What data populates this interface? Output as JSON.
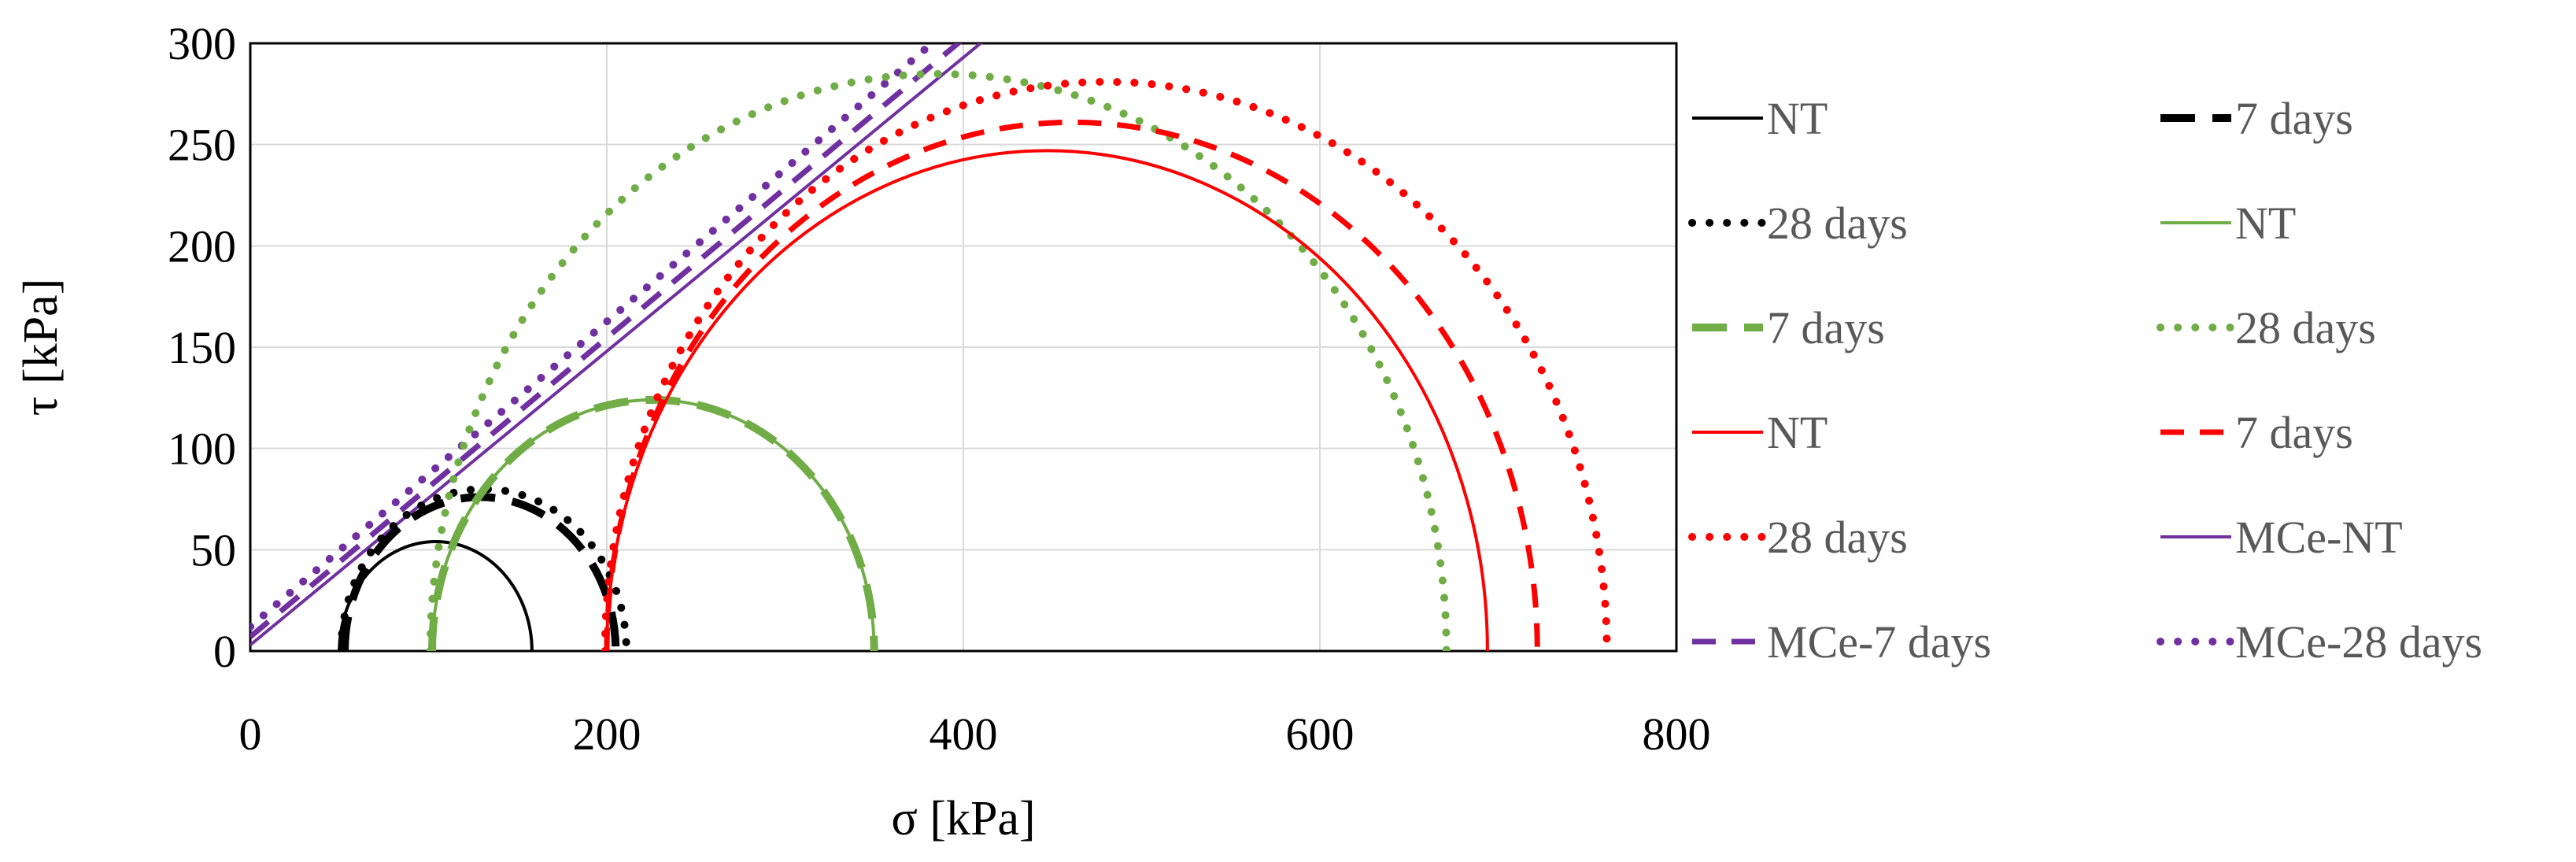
{
  "chart_data": {
    "type": "line",
    "title": "",
    "xlabel": "σ [kPa]",
    "ylabel": "τ [kPa]",
    "xlim": [
      0,
      800
    ],
    "ylim": [
      0,
      300
    ],
    "xticks": [
      "0",
      "200",
      "400",
      "600",
      "800"
    ],
    "yticks": [
      "0",
      "50",
      "100",
      "150",
      "200",
      "250",
      "300"
    ],
    "grid": true,
    "legend_position": "right, two columns",
    "circles": [
      {
        "name": "NT",
        "color": "#000000",
        "dash": "solid",
        "center": 104,
        "radius": 54
      },
      {
        "name": "7 days",
        "color": "#000000",
        "dash": "longdash",
        "center": 129,
        "radius": 76
      },
      {
        "name": "28 days",
        "color": "#000000",
        "dash": "dotted",
        "center": 131,
        "radius": 80
      },
      {
        "name": "NT",
        "color": "#70ad47",
        "dash": "solid",
        "center": 226,
        "radius": 124
      },
      {
        "name": "7 days",
        "color": "#70ad47",
        "dash": "longdash",
        "center": 226,
        "radius": 124
      },
      {
        "name": "28 days",
        "color": "#70ad47",
        "dash": "dotted",
        "center": 386,
        "radius": 285
      },
      {
        "name": "NT",
        "color": "#ff0000",
        "dash": "solid",
        "center": 447,
        "radius": 247
      },
      {
        "name": "7 days",
        "color": "#ff0000",
        "dash": "dash",
        "center": 461,
        "radius": 261
      },
      {
        "name": "28 days",
        "color": "#ff0000",
        "dash": "dotted",
        "center": 480,
        "radius": 281
      }
    ],
    "envelopes": [
      {
        "name": "MCe-NT",
        "color": "#7030a0",
        "dash": "solid",
        "intercept": 3,
        "slope": 0.725
      },
      {
        "name": "MCe-7 days",
        "color": "#7030a0",
        "dash": "dash",
        "intercept": 7,
        "slope": 0.738
      },
      {
        "name": "MCe-28 days",
        "color": "#7030a0",
        "dash": "dotted",
        "intercept": 12,
        "slope": 0.753
      }
    ]
  }
}
